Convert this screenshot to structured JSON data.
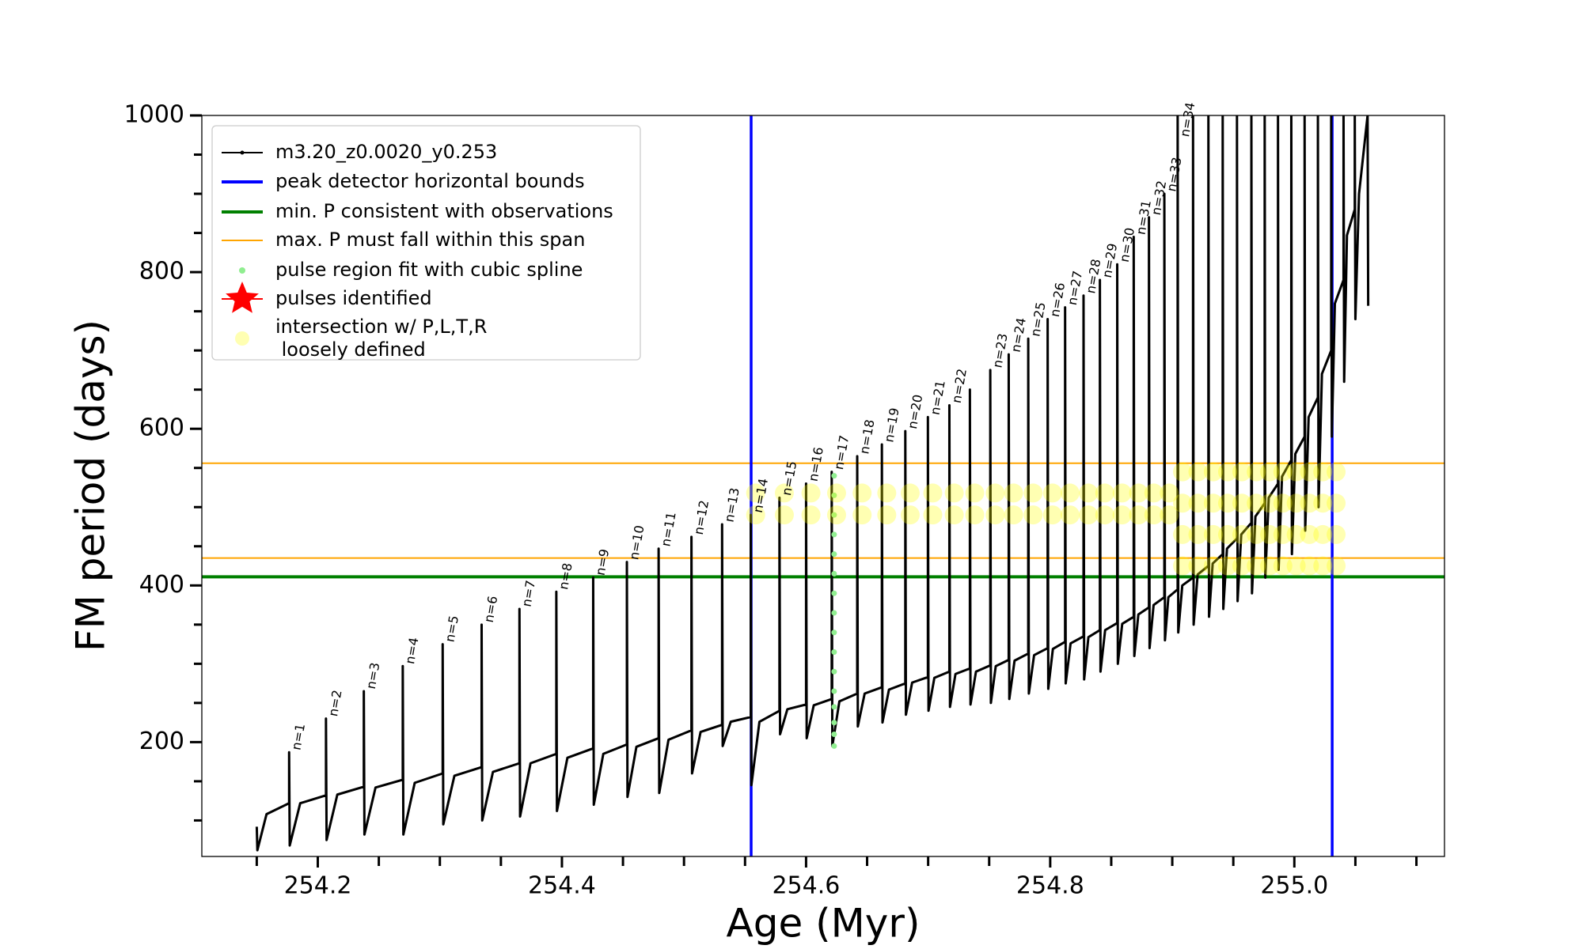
{
  "chart_data": {
    "type": "line",
    "xlabel": "Age (Myr)",
    "ylabel": "FM period (days)",
    "xlim": [
      254.105,
      255.123
    ],
    "ylim": [
      54,
      1000
    ],
    "xticks": [
      254.2,
      254.4,
      254.6,
      254.8,
      {
        "value": 255,
        "label": "255.0"
      }
    ],
    "xminorticks": [
      254.15,
      254.25,
      254.3,
      254.35,
      254.45,
      254.5,
      254.55,
      254.65,
      254.7,
      254.75,
      254.85,
      254.9,
      254.95,
      255.05,
      255.1
    ],
    "yticks": [
      200,
      400,
      600,
      800,
      1000
    ],
    "yminorticks": [
      100,
      150,
      250,
      300,
      350,
      450,
      500,
      550,
      650,
      700,
      750,
      850,
      900,
      950
    ],
    "legend": "upper left",
    "series": [
      {
        "name": "m3.20_z0.0020_y0.253",
        "color": "#000000",
        "kind": "line",
        "x": [
          254.15,
          254.1505,
          254.158,
          254.1765,
          254.1765,
          254.177,
          254.1856,
          254.2067,
          254.2067,
          254.2072,
          254.216,
          254.2377,
          254.2377,
          254.2382,
          254.2473,
          254.2696,
          254.2696,
          254.2701,
          254.2794,
          254.3023,
          254.3023,
          254.3028,
          254.3119,
          254.3342,
          254.3342,
          254.3347,
          254.3435,
          254.3652,
          254.3652,
          254.3657,
          254.3743,
          254.3954,
          254.3954,
          254.3959,
          254.4045,
          254.4256,
          254.4256,
          254.4261,
          254.4339,
          254.4532,
          254.4532,
          254.4537,
          254.461,
          254.4792,
          254.4792,
          254.4797,
          254.4873,
          254.5061,
          254.5061,
          254.5066,
          254.5136,
          254.5312,
          254.5312,
          254.5317,
          254.5383,
          254.5547,
          254.5547,
          254.5552,
          254.5618,
          254.5782,
          254.5782,
          254.5787,
          254.5847,
          254.6,
          254.6,
          254.6005,
          254.6063,
          254.621,
          254.621,
          254.6215,
          254.6273,
          254.6419,
          254.6419,
          254.6424,
          254.648,
          254.6621,
          254.6621,
          254.6626,
          254.6679,
          254.6813,
          254.6813,
          254.6818,
          254.6869,
          254.6998,
          254.6998,
          254.7003,
          254.7051,
          254.7174,
          254.7174,
          254.7179,
          254.7224,
          254.7342,
          254.7342,
          254.7347,
          254.7392,
          254.7509,
          254.7509,
          254.7514,
          254.7554,
          254.766,
          254.766,
          254.7665,
          254.7708,
          254.782,
          254.782,
          254.7825,
          254.7868,
          254.7979,
          254.7979,
          254.7984,
          254.8022,
          254.8122,
          254.8122,
          254.8127,
          254.8167,
          254.8273,
          254.8273,
          254.8278,
          254.8313,
          254.8407,
          254.8407,
          254.8412,
          254.845,
          254.8549,
          254.8549,
          254.8554,
          254.859,
          254.8684,
          254.8684,
          254.8689,
          254.8722,
          254.8809,
          254.8809,
          254.8814,
          254.8847,
          254.8935,
          254.8935,
          254.894,
          254.8968,
          254.9044,
          254.9044,
          254.9049,
          254.9082,
          254.917,
          254.917,
          254.9175,
          254.9208,
          254.9296,
          254.9296,
          254.9301,
          254.9331,
          254.9413,
          254.9413,
          254.9418,
          254.9448,
          254.953,
          254.953,
          254.9535,
          254.9565,
          254.9648,
          254.9648,
          254.9653,
          254.9681,
          254.9757,
          254.9757,
          254.9762,
          254.979,
          254.9866,
          254.9866,
          254.9871,
          254.9899,
          254.9975,
          254.9975,
          254.998,
          255.0008,
          255.0084,
          255.0084,
          255.0089,
          255.0117,
          255.0193,
          255.0193,
          255.0198,
          255.0226,
          255.0302,
          255.0302,
          255.0307,
          255.0332,
          255.0403,
          255.0403,
          255.0408,
          255.0431,
          255.0495,
          255.0495,
          255.05,
          255.053,
          255.06,
          255.0605
        ],
        "values": [
          92,
          62,
          108,
          122,
          187,
          68,
          122,
          132,
          230,
          75,
          133,
          143,
          265,
          82,
          142,
          152,
          297,
          82,
          148,
          160,
          325,
          95,
          157,
          168,
          350,
          100,
          162,
          173,
          370,
          105,
          173,
          185,
          392,
          112,
          180,
          192,
          410,
          120,
          185,
          197,
          430,
          130,
          194,
          205,
          447,
          135,
          203,
          215,
          462,
          160,
          213,
          222,
          478,
          195,
          226,
          232,
          490,
          145,
          226,
          240,
          512,
          210,
          242,
          248,
          530,
          205,
          247,
          255,
          545,
          195,
          252,
          262,
          565,
          220,
          262,
          270,
          580,
          225,
          267,
          275,
          597,
          235,
          276,
          283,
          615,
          240,
          282,
          290,
          630,
          245,
          287,
          294,
          650,
          248,
          290,
          298,
          675,
          250,
          297,
          305,
          695,
          255,
          304,
          313,
          715,
          262,
          311,
          320,
          740,
          268,
          319,
          328,
          755,
          275,
          326,
          335,
          770,
          280,
          334,
          343,
          790,
          290,
          343,
          352,
          810,
          300,
          351,
          360,
          845,
          310,
          363,
          372,
          870,
          320,
          375,
          385,
          900,
          330,
          385,
          395,
          1000,
          340,
          400,
          410,
          1000,
          350,
          414,
          425,
          1000,
          360,
          428,
          440,
          1000,
          370,
          447,
          460,
          1000,
          380,
          465,
          480,
          1000,
          390,
          488,
          505,
          1000,
          410,
          512,
          530,
          1000,
          420,
          539,
          560,
          1000,
          440,
          568,
          590,
          1000,
          470,
          615,
          640,
          1000,
          500,
          670,
          700,
          1000,
          590,
          760,
          790,
          1000,
          660,
          847,
          880,
          1000,
          740,
          900,
          1000,
          757
        ]
      },
      {
        "name": "peak detector horizontal bounds",
        "color": "#0000ff",
        "kind": "vline",
        "x": [
          254.555,
          255.031
        ]
      },
      {
        "name": "min. P consistent with observations",
        "color": "#008000",
        "kind": "hline",
        "values": [
          411
        ]
      },
      {
        "name": "max. P must fall within this span",
        "color": "#ffa500",
        "kind": "hline",
        "values": [
          435,
          556
        ]
      },
      {
        "name": "pulse region fit with cubic spline",
        "color": "#90ee90",
        "kind": "scatter",
        "x": [
          254.623,
          254.623,
          254.623,
          254.623,
          254.623,
          254.623,
          254.623,
          254.623,
          254.623,
          254.623,
          254.623,
          254.623,
          254.623,
          254.623,
          254.623,
          254.623
        ],
        "values": [
          195,
          210,
          225,
          245,
          265,
          290,
          315,
          340,
          365,
          390,
          415,
          440,
          465,
          490,
          515,
          540
        ]
      },
      {
        "name": "pulses identified",
        "color": "#ff0000",
        "kind": "star",
        "x": [],
        "values": []
      },
      {
        "name": "intersection w/ P,L,T,R\nloosely defined",
        "color": "#ffff00",
        "kind": "bubble",
        "x": [
          254.5587,
          254.5587,
          254.5822,
          254.5822,
          254.604,
          254.604,
          254.625,
          254.625,
          254.6459,
          254.6459,
          254.6661,
          254.6661,
          254.6853,
          254.6853,
          254.7038,
          254.7038,
          254.7214,
          254.7214,
          254.7382,
          254.7382,
          254.7549,
          254.7549,
          254.77,
          254.77,
          254.786,
          254.786,
          254.8019,
          254.8019,
          254.8162,
          254.8162,
          254.8313,
          254.8313,
          254.8447,
          254.8447,
          254.8589,
          254.8589,
          254.8724,
          254.8724,
          254.8849,
          254.8849,
          254.8975,
          254.8975,
          254.9084,
          254.9084,
          254.9084,
          254.9084,
          254.921,
          254.921,
          254.921,
          254.921,
          254.9336,
          254.9336,
          254.9336,
          254.9336,
          254.9453,
          254.9453,
          254.9453,
          254.9453,
          254.957,
          254.957,
          254.957,
          254.957,
          254.9688,
          254.9688,
          254.9688,
          254.9688,
          254.9797,
          254.9797,
          254.9797,
          254.9797,
          254.9906,
          254.9906,
          254.9906,
          254.9906,
          255.0015,
          255.0015,
          255.0015,
          255.0015,
          255.0124,
          255.0124,
          255.0124,
          255.0124,
          255.0233,
          255.0233,
          255.0233,
          255.0233,
          255.0342,
          255.0342,
          255.0342,
          255.0342
        ],
        "values": [
          490,
          518,
          490,
          518,
          490,
          518,
          490,
          518,
          490,
          518,
          490,
          518,
          490,
          518,
          490,
          518,
          490,
          518,
          490,
          518,
          490,
          518,
          490,
          518,
          490,
          518,
          490,
          518,
          490,
          518,
          490,
          518,
          490,
          518,
          490,
          518,
          490,
          518,
          490,
          518,
          490,
          518,
          425,
          465,
          505,
          545,
          425,
          465,
          505,
          545,
          425,
          465,
          505,
          545,
          425,
          465,
          505,
          545,
          425,
          465,
          505,
          545,
          425,
          465,
          505,
          545,
          425,
          465,
          505,
          545,
          425,
          465,
          505,
          545,
          425,
          465,
          505,
          545,
          425,
          465,
          505,
          545,
          425,
          465,
          505,
          545,
          425,
          465,
          505,
          545
        ]
      }
    ],
    "annotations": [
      {
        "text": "n=1",
        "x": 254.1765,
        "y": 187
      },
      {
        "text": "n=2",
        "x": 254.2067,
        "y": 230
      },
      {
        "text": "n=3",
        "x": 254.2377,
        "y": 265
      },
      {
        "text": "n=4",
        "x": 254.2696,
        "y": 297
      },
      {
        "text": "n=5",
        "x": 254.3023,
        "y": 325
      },
      {
        "text": "n=6",
        "x": 254.3342,
        "y": 350
      },
      {
        "text": "n=7",
        "x": 254.3652,
        "y": 370
      },
      {
        "text": "n=8",
        "x": 254.3954,
        "y": 392
      },
      {
        "text": "n=9",
        "x": 254.4256,
        "y": 410
      },
      {
        "text": "n=10",
        "x": 254.4532,
        "y": 430
      },
      {
        "text": "n=11",
        "x": 254.4792,
        "y": 447
      },
      {
        "text": "n=12",
        "x": 254.5061,
        "y": 462
      },
      {
        "text": "n=13",
        "x": 254.5312,
        "y": 478
      },
      {
        "text": "n=14",
        "x": 254.5547,
        "y": 490
      },
      {
        "text": "n=15",
        "x": 254.5782,
        "y": 512
      },
      {
        "text": "n=16",
        "x": 254.6,
        "y": 530
      },
      {
        "text": "n=17",
        "x": 254.621,
        "y": 545
      },
      {
        "text": "n=18",
        "x": 254.6419,
        "y": 565
      },
      {
        "text": "n=19",
        "x": 254.6621,
        "y": 580
      },
      {
        "text": "n=20",
        "x": 254.6813,
        "y": 597
      },
      {
        "text": "n=21",
        "x": 254.6998,
        "y": 615
      },
      {
        "text": "n=22",
        "x": 254.7174,
        "y": 630
      },
      {
        "text": "n=23",
        "x": 254.7509,
        "y": 675
      },
      {
        "text": "n=24",
        "x": 254.766,
        "y": 695
      },
      {
        "text": "n=25",
        "x": 254.782,
        "y": 715
      },
      {
        "text": "n=26",
        "x": 254.7979,
        "y": 740
      },
      {
        "text": "n=27",
        "x": 254.8122,
        "y": 755
      },
      {
        "text": "n=28",
        "x": 254.8273,
        "y": 770
      },
      {
        "text": "n=29",
        "x": 254.8407,
        "y": 790
      },
      {
        "text": "n=30",
        "x": 254.8549,
        "y": 810
      },
      {
        "text": "n=31",
        "x": 254.8684,
        "y": 845
      },
      {
        "text": "n=32",
        "x": 254.8809,
        "y": 870
      },
      {
        "text": "n=33",
        "x": 254.8935,
        "y": 900
      },
      {
        "text": "n=34",
        "x": 254.9044,
        "y": 970
      }
    ]
  }
}
